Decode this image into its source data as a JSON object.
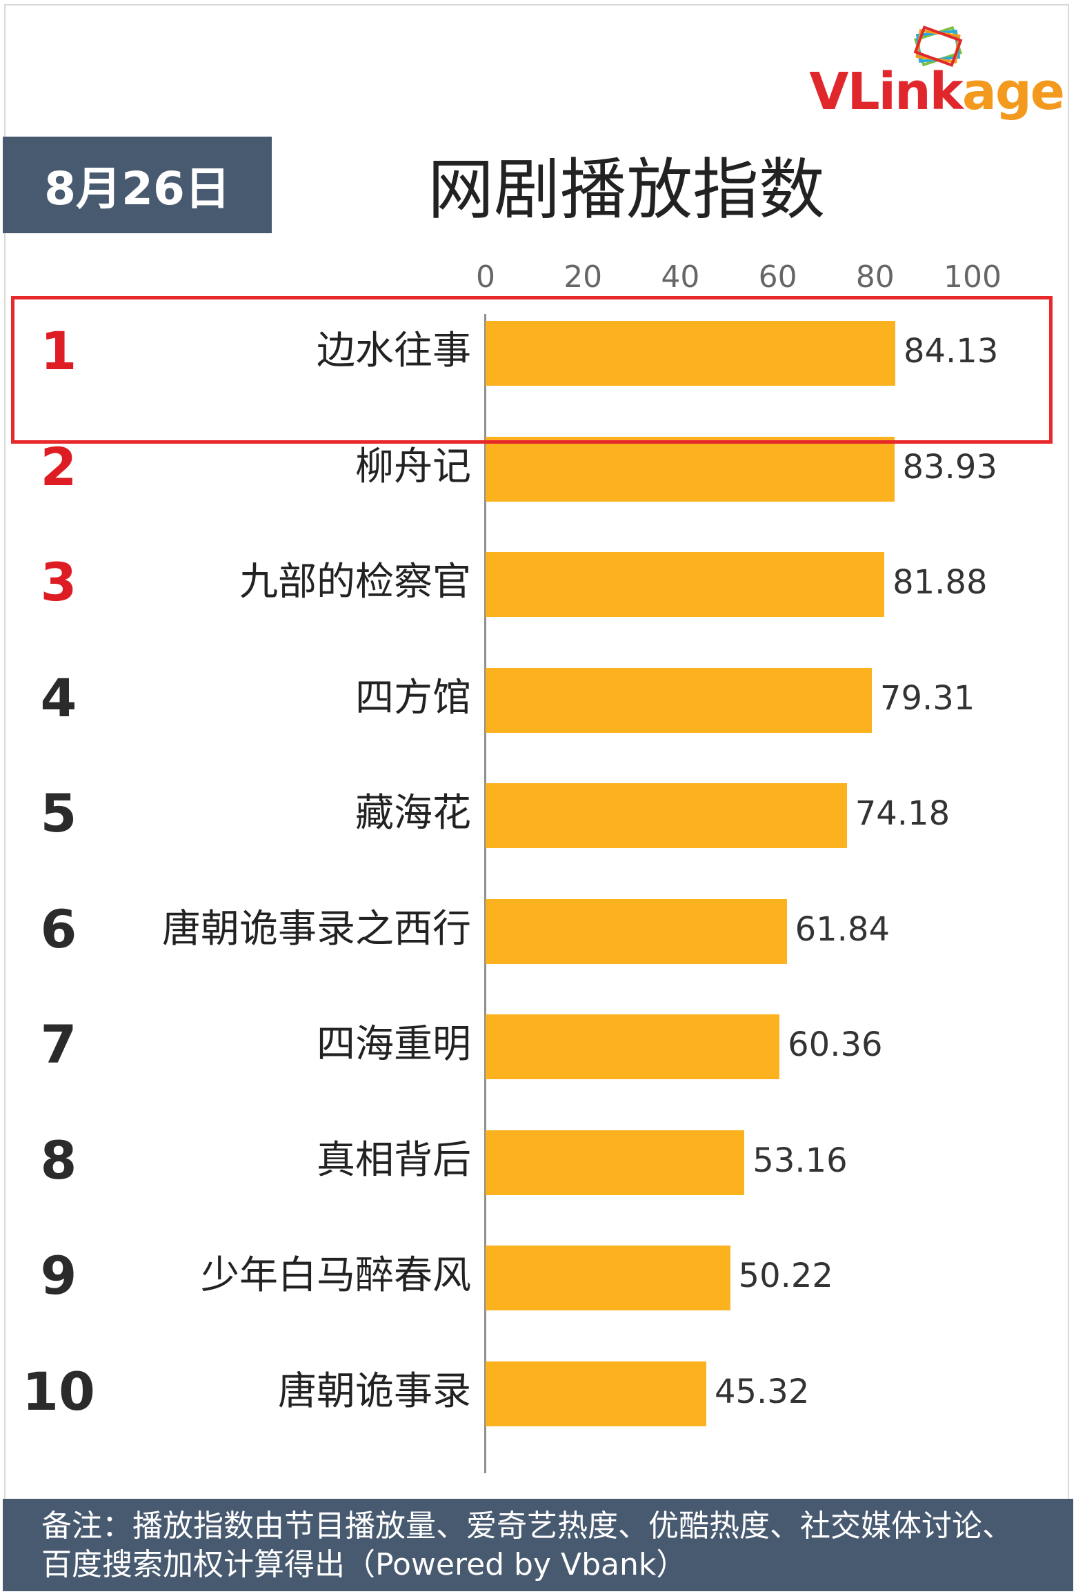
{
  "logo": {
    "text_main": "VLink",
    "text_tail": "age"
  },
  "date_label": "8月26日",
  "chart_data": {
    "type": "bar",
    "orientation": "horizontal",
    "title": "网剧播放指数",
    "xlim": [
      0,
      100
    ],
    "ticks": [
      0,
      20,
      40,
      60,
      80,
      100
    ],
    "categories": [
      "边水往事",
      "柳舟记",
      "九部的检察官",
      "四方馆",
      "藏海花",
      "唐朝诡事录之西行",
      "四海重明",
      "真相背后",
      "少年白马醉春风",
      "唐朝诡事录"
    ],
    "ranks": [
      "1",
      "2",
      "3",
      "4",
      "5",
      "6",
      "7",
      "8",
      "9",
      "10"
    ],
    "values": [
      84.13,
      83.93,
      81.88,
      79.31,
      74.18,
      61.84,
      60.36,
      53.16,
      50.22,
      45.32
    ],
    "value_labels": [
      "84.13",
      "83.93",
      "81.88",
      "79.31",
      "74.18",
      "61.84",
      "60.36",
      "53.16",
      "50.22",
      "45.32"
    ],
    "bar_color": "#fbb21e",
    "highlight_rank_color": "#dd1c23",
    "highlighted_item": "边水往事"
  },
  "footer_note": "备注：播放指数由节目播放量、爱奇艺热度、优酷热度、社交媒体讨论、百度搜索加权计算得出（Powered by Vbank）"
}
